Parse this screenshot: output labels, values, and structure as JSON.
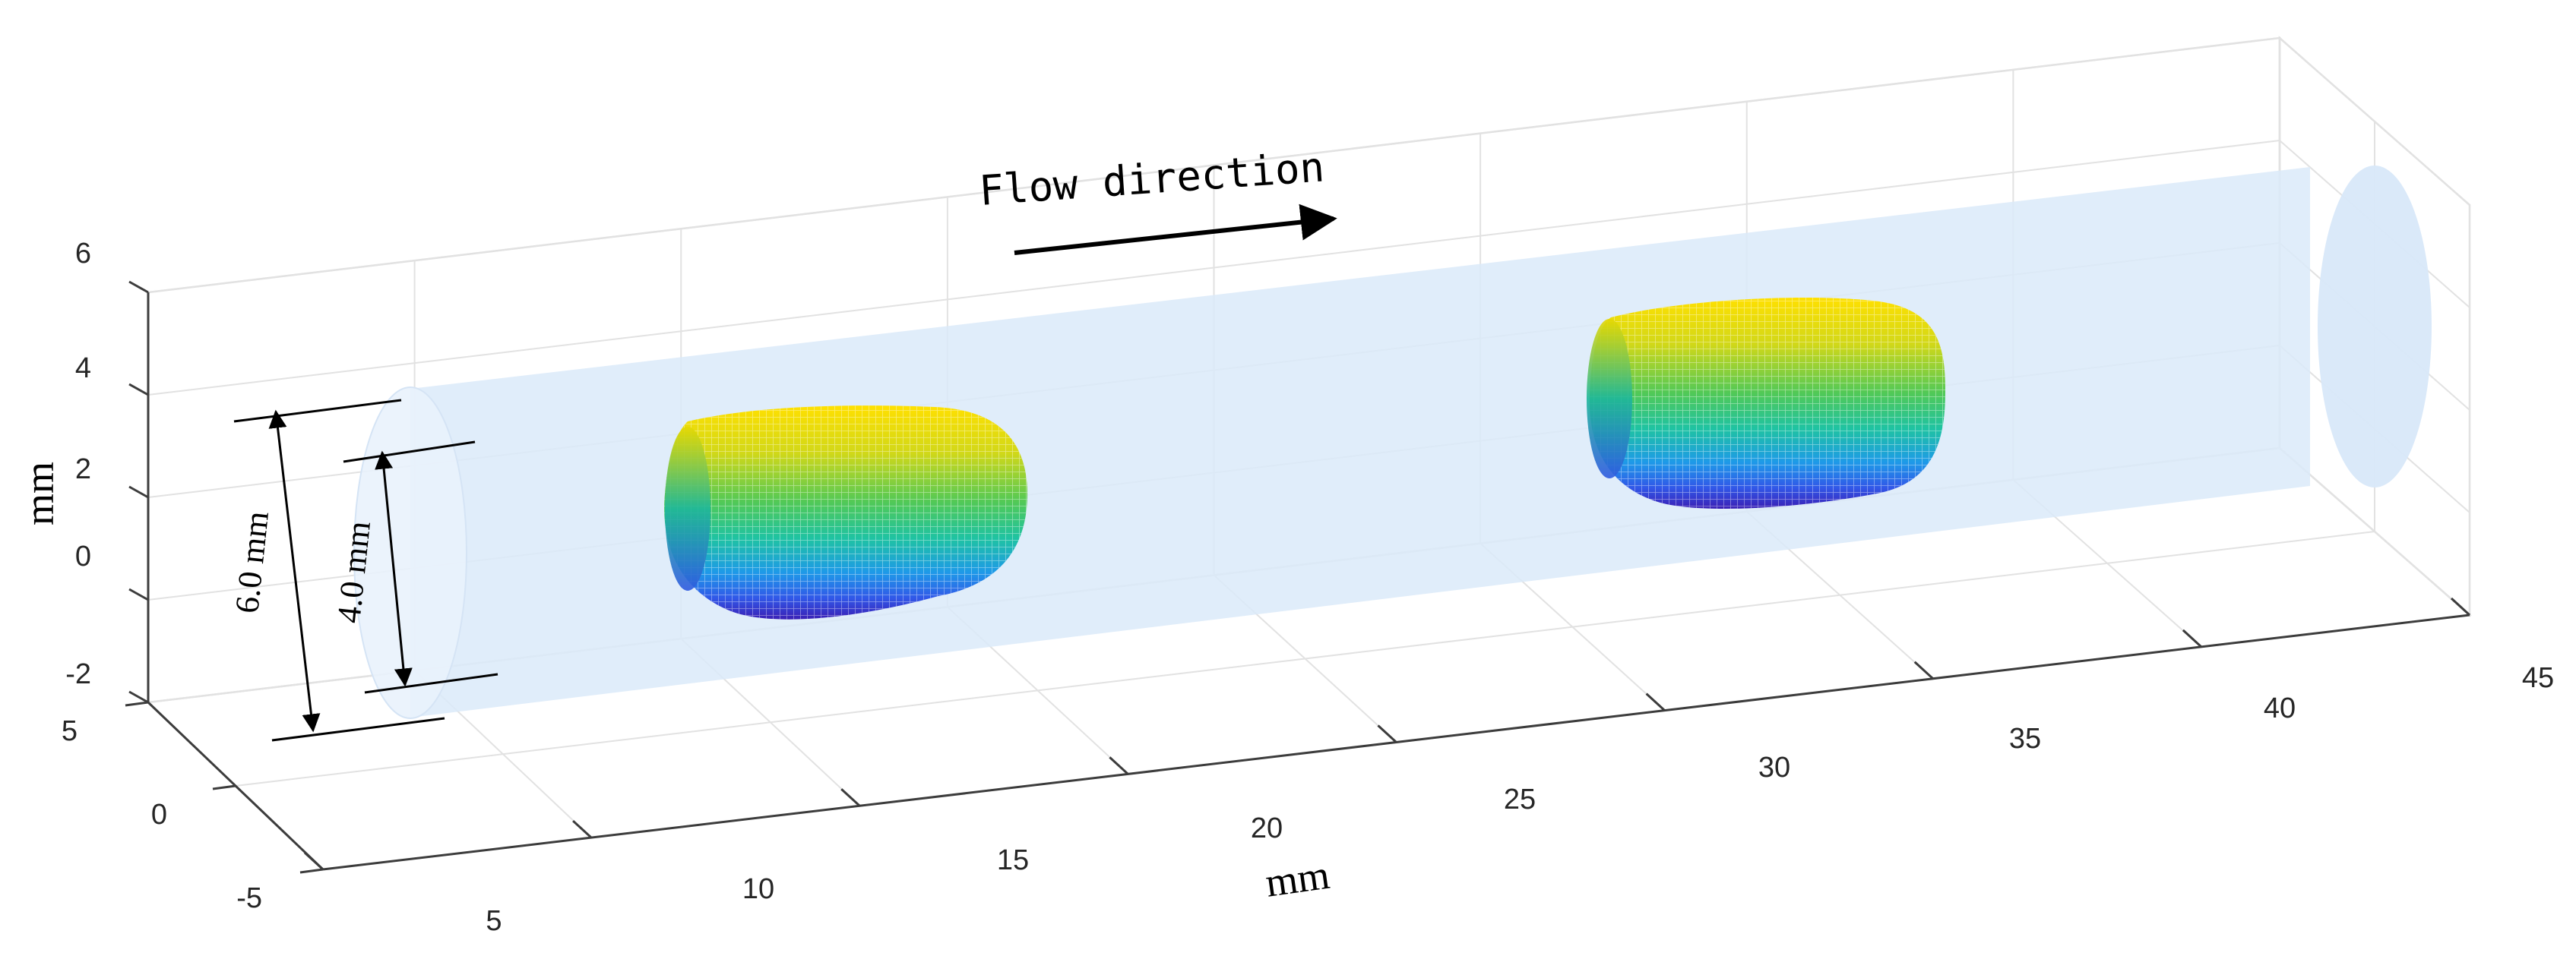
{
  "chart_data": {
    "type": "surface",
    "title": "",
    "xlabel": "mm",
    "ylabel": "",
    "zlabel": "mm",
    "x_ticks": [
      "5",
      "10",
      "15",
      "20",
      "25",
      "30",
      "35",
      "40",
      "45"
    ],
    "y_ticks": [
      "5",
      "0",
      "-5"
    ],
    "z_ticks": [
      "6",
      "4",
      "2",
      "0",
      "-2"
    ],
    "xlim": [
      5,
      45
    ],
    "ylim": [
      -5,
      5
    ],
    "zlim": [
      -2,
      6
    ],
    "grid": true,
    "annotations": {
      "flow_label": "Flow direction",
      "outer_diameter": "6.0 mm",
      "inner_diameter": "4.0 mm"
    },
    "tube": {
      "x_start": 5,
      "x_end": 45,
      "diameter_mm": 6.0,
      "color": "#dbeaf9"
    },
    "bubbles": [
      {
        "x_start": 11.5,
        "x_end": 17.5,
        "diameter_mm": 4.0
      },
      {
        "x_start": 29,
        "x_end": 35,
        "diameter_mm": 4.0
      }
    ],
    "colormap": [
      "#3a1fb0",
      "#2f55e0",
      "#1faee0",
      "#26c37a",
      "#9fd42a",
      "#ffd800"
    ]
  }
}
